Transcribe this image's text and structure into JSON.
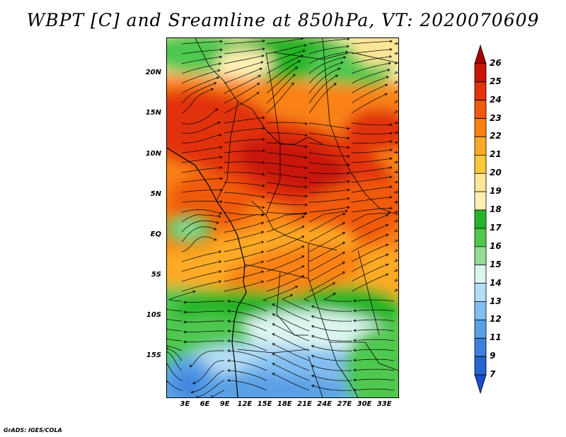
{
  "title": "WBPT [C] and Sreamline at 850hPa, VT: 2020070609",
  "credit": "GrADS: IGES/COLA",
  "map": {
    "variable": "Wet-bulb potential temperature",
    "units": "C",
    "level": "850hPa",
    "valid_time": "2020070609",
    "lat_labels": [
      "20N",
      "15N",
      "10N",
      "5N",
      "EQ",
      "5S",
      "10S",
      "15S"
    ],
    "lat_values": [
      20,
      15,
      10,
      5,
      0,
      -5,
      -10,
      -15
    ],
    "lon_labels": [
      "3E",
      "6E",
      "9E",
      "12E",
      "15E",
      "18E",
      "21E",
      "24E",
      "27E",
      "30E",
      "33E"
    ],
    "lon_values": [
      3,
      6,
      9,
      12,
      15,
      18,
      21,
      24,
      27,
      30,
      33
    ],
    "lat_range": [
      -20,
      24.5
    ],
    "lon_range": [
      0.2,
      35
    ]
  },
  "colorbar": {
    "levels": [
      "26",
      "25",
      "24",
      "23",
      "22",
      "21",
      "20",
      "19",
      "18",
      "17",
      "16",
      "15",
      "14",
      "13",
      "12",
      "11",
      "9",
      "7"
    ],
    "colors": [
      "#a50000",
      "#c8140a",
      "#e1320a",
      "#f05a0a",
      "#fa8214",
      "#fdaa28",
      "#fdc83c",
      "#fde696",
      "#fff0b4",
      "#28b428",
      "#50c850",
      "#96dc96",
      "#dcf5f0",
      "#b4dcf5",
      "#82bef0",
      "#5aa0e6",
      "#3c82dc",
      "#2864d2",
      "#1e4bc8"
    ]
  },
  "colors": {
    "frame": "#000000",
    "background": "#ffffff",
    "streamline": "#000000"
  }
}
